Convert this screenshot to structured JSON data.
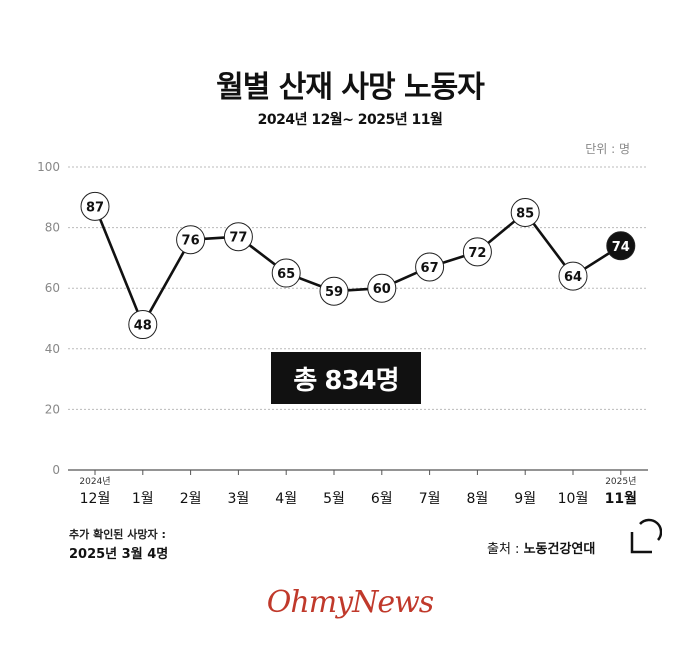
{
  "title": "월별 산재 사망 노동자",
  "subtitle": "2024년 12월~ 2025년 11월",
  "unit_label": "단위 : 명",
  "total_label": "총 834명",
  "note_line1": "추가 확인된 사망자 :",
  "note_line2": "2025년 3월 4명",
  "source_prefix": "출처 : ",
  "source_name": "노동건강연대",
  "brand": "OhmyNews",
  "colors": {
    "line": "#111111",
    "marker_fill": "#ffffff",
    "highlight_fill": "#111111",
    "grid": "#bbbbbb",
    "brand": "#c0392b"
  },
  "chart_data": {
    "type": "line",
    "title": "월별 산재 사망 노동자",
    "subtitle": "2024년 12월~ 2025년 11월",
    "unit": "단위 : 명",
    "categories": [
      "12월",
      "1월",
      "2월",
      "3월",
      "4월",
      "5월",
      "6월",
      "7월",
      "8월",
      "9월",
      "10월",
      "11월"
    ],
    "year_labels": [
      "2024년",
      "",
      "",
      "",
      "",
      "",
      "",
      "",
      "",
      "",
      "",
      "2025년"
    ],
    "values": [
      87,
      48,
      76,
      77,
      65,
      59,
      60,
      67,
      72,
      85,
      64,
      74
    ],
    "highlight_index": 11,
    "ylim": [
      0,
      100
    ],
    "yticks": [
      0,
      20,
      40,
      60,
      80,
      100
    ],
    "grid": true
  }
}
